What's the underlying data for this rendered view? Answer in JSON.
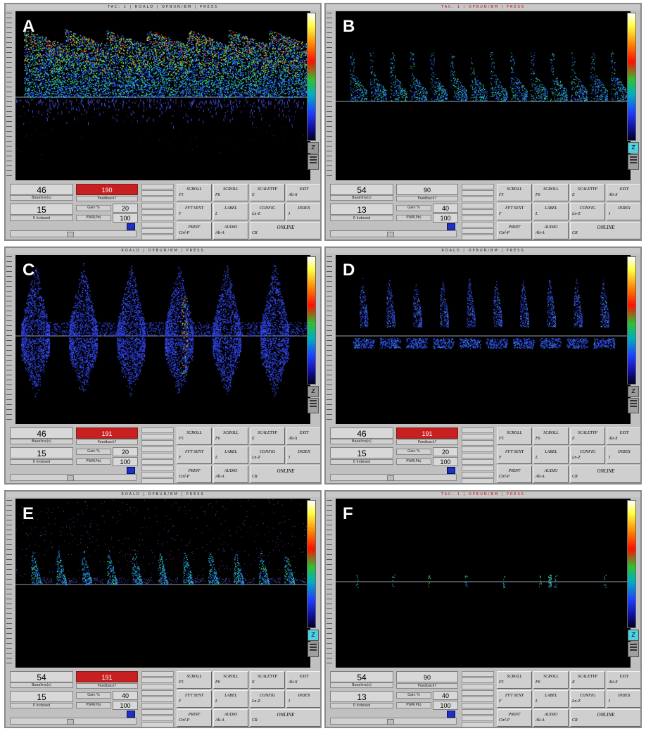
{
  "panels": [
    {
      "letter": "A",
      "kind": "a",
      "title": "TAC: 1  |  ROALD  |  OPBUN/BM  |  PRESS",
      "title_red": false,
      "val_top": "46",
      "val_top_sub": "Baseline(s)",
      "red_label": "190",
      "red_sub": "Feedback?",
      "top_mid": "",
      "val_bot": "15",
      "val_bot_sub": "0 Indexed",
      "gain_label": "Gain %",
      "gain_val": "20",
      "power_label": "PWR(Pb)",
      "power_val": "100",
      "zoom": "Z",
      "zoom_cyan": false
    },
    {
      "letter": "B",
      "kind": "b",
      "title": "TAC: 1  |  OPBUN/BM  |  PRESS",
      "title_red": true,
      "val_top": "54",
      "val_top_sub": "Baseline(s)",
      "red_label": "",
      "red_sub": "Feedback?",
      "top_mid": "90",
      "val_bot": "13",
      "val_bot_sub": "0 Indexed",
      "gain_label": "Gain %",
      "gain_val": "40",
      "power_label": "PWR(Pb)",
      "power_val": "100",
      "zoom": "Z",
      "zoom_cyan": true
    },
    {
      "letter": "C",
      "kind": "c",
      "title": "ROALD  |  OPBUN/BM  |  PRESS",
      "title_red": false,
      "val_top": "46",
      "val_top_sub": "Baseline(s)",
      "red_label": "191",
      "red_sub": "Feedback?",
      "top_mid": "",
      "val_bot": "15",
      "val_bot_sub": "0 Indexed",
      "gain_label": "Gain %",
      "gain_val": "20",
      "power_label": "PWR(Pb)",
      "power_val": "100",
      "zoom": "Z",
      "zoom_cyan": false
    },
    {
      "letter": "D",
      "kind": "d",
      "title": "ROALD  |  OPBUN/BM  |  PRESS",
      "title_red": false,
      "val_top": "46",
      "val_top_sub": "Baseline(s)",
      "red_label": "191",
      "red_sub": "Feedback?",
      "top_mid": "",
      "val_bot": "15",
      "val_bot_sub": "0 Indexed",
      "gain_label": "Gain %",
      "gain_val": "20",
      "power_label": "PWR(Pb)",
      "power_val": "100",
      "zoom": "Z",
      "zoom_cyan": false
    },
    {
      "letter": "E",
      "kind": "e",
      "title": "ROALD  |  OPBUN/BM  |  PRESS",
      "title_red": false,
      "val_top": "54",
      "val_top_sub": "Baseline(s)",
      "red_label": "191",
      "red_sub": "Feedback?",
      "top_mid": "",
      "val_bot": "15",
      "val_bot_sub": "0 Indexed",
      "gain_label": "Gain %",
      "gain_val": "40",
      "power_label": "PWR(Pb)",
      "power_val": "100",
      "zoom": "Z",
      "zoom_cyan": true
    },
    {
      "letter": "F",
      "kind": "f",
      "title": "TAC: 1  |  OPBUN/BM  |  PRESS",
      "title_red": true,
      "val_top": "54",
      "val_top_sub": "Baseline(s)",
      "red_label": "",
      "red_sub": "Feedback?",
      "top_mid": "90",
      "val_bot": "13",
      "val_bot_sub": "0 Indexed",
      "gain_label": "Gain %",
      "gain_val": "40",
      "power_label": "PWR(Pb)",
      "power_val": "100",
      "zoom": "Z",
      "zoom_cyan": true
    }
  ],
  "buttons": {
    "scroll_left": "SCROLL",
    "scroll_left_key": "F5",
    "scroll_right": "SCROLL",
    "scroll_right_key": "F6",
    "scaletyp": "SCALETYP",
    "scaletyp_key": "E",
    "exit": "EXIT",
    "exit_key": "Alt-X",
    "fft_sent": "FFT SENT",
    "fft_key": "F",
    "label": "LABEL",
    "label_key": "L",
    "config": "CONFIG",
    "config_key": "Ln-Z",
    "index": "INDEX",
    "index_key": "I",
    "print": "PRINT",
    "print_key": "Ctrl-P",
    "audio": "AUDIO",
    "audio_key": "Alt-A",
    "online": "ONLINE",
    "online_key": "CR"
  },
  "colors": {
    "panel_bg": "#c0c0c0",
    "spectrum_bg": "#000000",
    "red_box": "#c82020"
  }
}
